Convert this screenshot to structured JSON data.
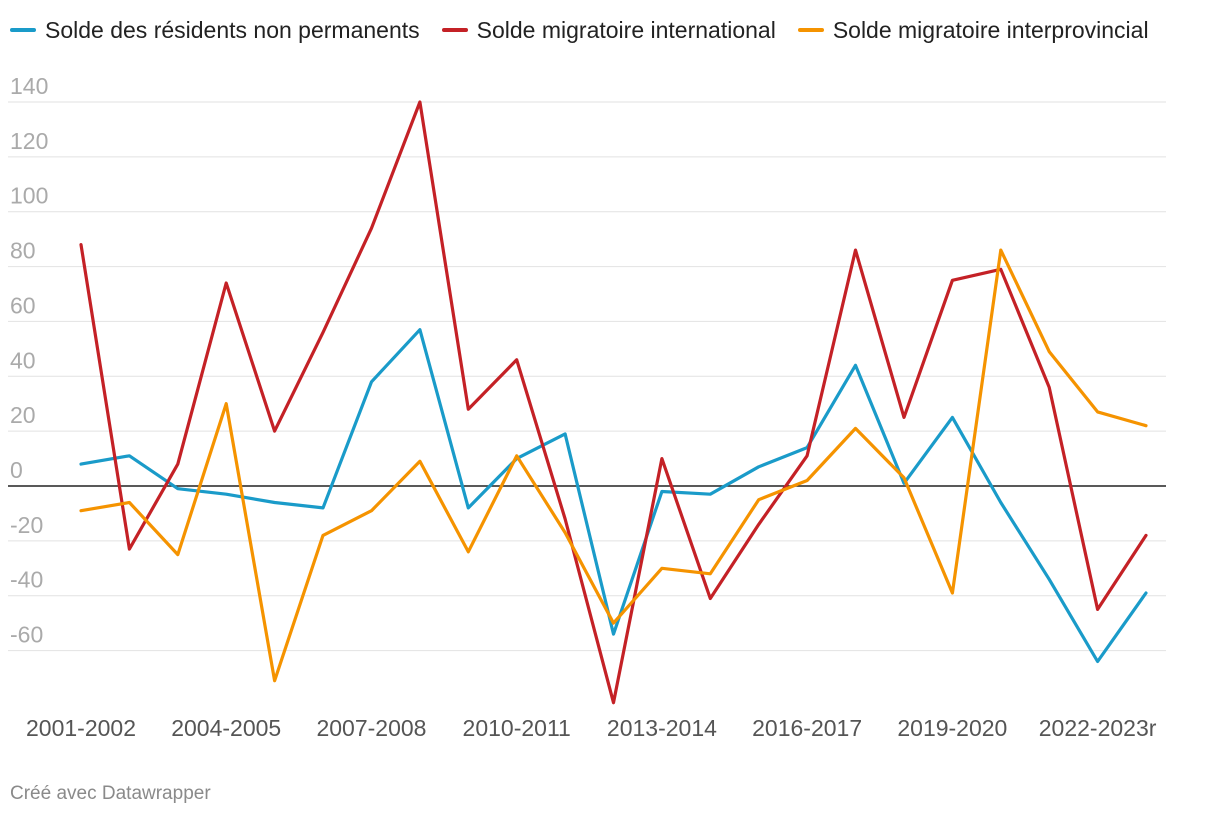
{
  "chart_data": {
    "type": "line",
    "title": "",
    "xlabel": "",
    "ylabel": "",
    "ylim": [
      -80,
      140
    ],
    "y_ticks": [
      140,
      120,
      100,
      80,
      60,
      40,
      20,
      0,
      -20,
      -40,
      -60
    ],
    "x": [
      "2001-2002",
      "2002-2003",
      "2003-2004",
      "2004-2005",
      "2005-2006",
      "2006-2007",
      "2007-2008",
      "2008-2009",
      "2009-2010",
      "2010-2011",
      "2011-2012",
      "2012-2013",
      "2013-2014",
      "2014-2015",
      "2015-2016",
      "2016-2017",
      "2017-2018",
      "2018-2019",
      "2019-2020",
      "2020-2021",
      "2021-2022",
      "2022-2023r",
      "2023-2024"
    ],
    "x_tick_labels": [
      {
        "index": 0,
        "label": "2001-2002"
      },
      {
        "index": 3,
        "label": "2004-2005"
      },
      {
        "index": 6,
        "label": "2007-2008"
      },
      {
        "index": 9,
        "label": "2010-2011"
      },
      {
        "index": 12,
        "label": "2013-2014"
      },
      {
        "index": 15,
        "label": "2016-2017"
      },
      {
        "index": 18,
        "label": "2019-2020"
      },
      {
        "index": 21,
        "label": "2022-2023r"
      }
    ],
    "legend_position": "top",
    "series": [
      {
        "name": "Solde des résidents non permanents",
        "color": "#1a9bc9",
        "values": [
          8,
          11,
          -1,
          -3,
          -6,
          -8,
          38,
          57,
          -8,
          10,
          19,
          -54,
          -2,
          -3,
          7,
          14,
          44,
          1,
          25,
          -6,
          -34,
          -64,
          -39
        ]
      },
      {
        "name": "Solde migratoire international",
        "color": "#c42126",
        "values": [
          88,
          -23,
          8,
          74,
          20,
          56,
          94,
          140,
          28,
          46,
          -12,
          -79,
          10,
          -41,
          -14,
          11,
          86,
          25,
          75,
          79,
          36,
          -45,
          -18
        ]
      },
      {
        "name": "Solde migratoire interprovincial",
        "color": "#f59300",
        "values": [
          -9,
          -6,
          -25,
          30,
          -71,
          -18,
          -9,
          9,
          -24,
          11,
          -17,
          -50,
          -30,
          -32,
          -5,
          2,
          21,
          3,
          -39,
          86,
          49,
          27,
          22
        ]
      }
    ]
  },
  "credit": "Créé avec Datawrapper"
}
